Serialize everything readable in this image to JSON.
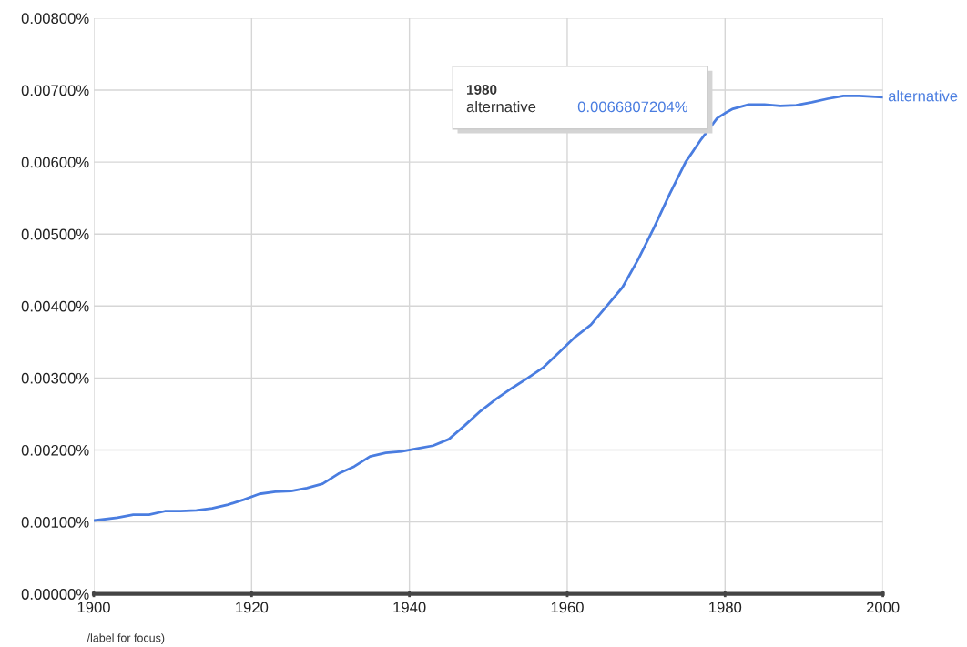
{
  "chart_data": {
    "type": "line",
    "x": [
      1900,
      1903,
      1905,
      1907,
      1909,
      1911,
      1913,
      1915,
      1917,
      1919,
      1921,
      1923,
      1925,
      1927,
      1929,
      1931,
      1933,
      1935,
      1937,
      1939,
      1941,
      1943,
      1945,
      1947,
      1949,
      1951,
      1953,
      1955,
      1957,
      1959,
      1961,
      1963,
      1965,
      1967,
      1969,
      1971,
      1973,
      1975,
      1977,
      1979,
      1980,
      1981,
      1983,
      1985,
      1987,
      1989,
      1991,
      1993,
      1995,
      1997,
      2000
    ],
    "series": [
      {
        "name": "alternative",
        "color": "#4a7de0",
        "values": [
          0.00102,
          0.00106,
          0.0011,
          0.0011,
          0.00115,
          0.00115,
          0.00116,
          0.00119,
          0.00124,
          0.00131,
          0.00139,
          0.00142,
          0.00143,
          0.00147,
          0.00153,
          0.00167,
          0.00177,
          0.00191,
          0.00196,
          0.00198,
          0.00202,
          0.00206,
          0.00215,
          0.00234,
          0.00254,
          0.00271,
          0.00286,
          0.003,
          0.00315,
          0.00336,
          0.00357,
          0.00374,
          0.004,
          0.00426,
          0.00465,
          0.00509,
          0.00556,
          0.006,
          0.00632,
          0.00661,
          0.00668,
          0.00674,
          0.0068,
          0.0068,
          0.00678,
          0.00679,
          0.00683,
          0.00688,
          0.00692,
          0.00692,
          0.0069
        ]
      }
    ],
    "xlim": [
      1900,
      2000
    ],
    "xticks": [
      1900,
      1920,
      1940,
      1960,
      1980,
      2000
    ],
    "ylim": [
      0,
      0.008
    ],
    "yticks": [
      {
        "value": 0,
        "label": "0.00000%"
      },
      {
        "value": 0.001,
        "label": "0.00100%"
      },
      {
        "value": 0.002,
        "label": "0.00200%"
      },
      {
        "value": 0.003,
        "label": "0.00300%"
      },
      {
        "value": 0.004,
        "label": "0.00400%"
      },
      {
        "value": 0.005,
        "label": "0.00500%"
      },
      {
        "value": 0.006,
        "label": "0.00600%"
      },
      {
        "value": 0.007,
        "label": "0.00700%"
      },
      {
        "value": 0.008,
        "label": "0.00800%"
      }
    ],
    "grid": true,
    "legend": false,
    "marker": "none",
    "line_style": "solid",
    "annotations": [
      "1980",
      "0.0066807204%",
      "/label for focus)"
    ]
  }
}
